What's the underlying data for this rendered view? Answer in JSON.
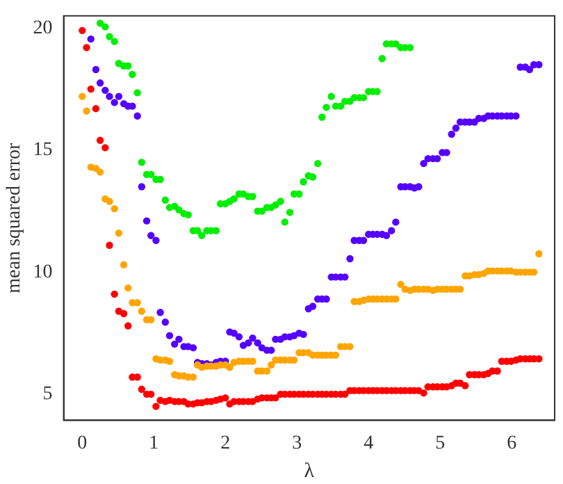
{
  "chart_data": {
    "type": "scatter",
    "xlabel": "λ",
    "ylabel": "mean squared error",
    "xlim": [
      -0.26,
      6.6
    ],
    "ylim": [
      3.93,
      20.5
    ],
    "xticks": [
      0,
      1,
      2,
      3,
      4,
      5,
      6
    ],
    "yticks": [
      5,
      10,
      15,
      20
    ],
    "grid": false,
    "legend": false,
    "marker": "circle",
    "x": [
      0,
      0.06,
      0.12,
      0.19,
      0.25,
      0.32,
      0.38,
      0.45,
      0.51,
      0.58,
      0.64,
      0.7,
      0.77,
      0.83,
      0.9,
      0.96,
      1.03,
      1.09,
      1.16,
      1.22,
      1.29,
      1.35,
      1.42,
      1.48,
      1.55,
      1.61,
      1.67,
      1.74,
      1.8,
      1.87,
      1.93,
      2.0,
      2.06,
      2.12,
      2.19,
      2.25,
      2.32,
      2.38,
      2.45,
      2.51,
      2.58,
      2.64,
      2.7,
      2.77,
      2.83,
      2.9,
      2.96,
      3.03,
      3.09,
      3.16,
      3.22,
      3.29,
      3.35,
      3.41,
      3.48,
      3.54,
      3.61,
      3.67,
      3.74,
      3.8,
      3.87,
      3.93,
      4.0,
      4.06,
      4.12,
      4.19,
      4.25,
      4.32,
      4.38,
      4.45,
      4.51,
      4.58,
      4.64,
      4.7,
      4.77,
      4.83,
      4.9,
      4.96,
      5.03,
      5.09,
      5.16,
      5.22,
      5.28,
      5.35,
      5.41,
      5.48,
      5.54,
      5.61,
      5.67,
      5.73,
      5.8,
      5.86,
      5.93,
      5.99,
      6.06,
      6.12,
      6.19,
      6.25,
      6.31,
      6.38
    ],
    "series": [
      {
        "color": "#ff0000",
        "values": [
          19.9,
          19.2,
          17.5,
          16.7,
          15.4,
          15.1,
          11.1,
          9.1,
          8.4,
          8.3,
          7.8,
          5.7,
          5.7,
          5.2,
          5.0,
          5.0,
          4.5,
          4.75,
          4.7,
          4.75,
          4.7,
          4.7,
          4.7,
          4.6,
          4.6,
          4.65,
          4.65,
          4.7,
          4.7,
          4.75,
          4.8,
          4.85,
          4.6,
          4.7,
          4.7,
          4.7,
          4.7,
          4.7,
          4.8,
          4.85,
          4.85,
          4.85,
          4.85,
          5.0,
          5.0,
          5.0,
          5.0,
          5.0,
          5.0,
          5.0,
          5.0,
          5.0,
          5.0,
          5.0,
          5.0,
          5.0,
          5.0,
          5.0,
          5.15,
          5.15,
          5.15,
          5.15,
          5.15,
          5.15,
          5.15,
          5.15,
          5.15,
          5.15,
          5.15,
          5.15,
          5.15,
          5.15,
          5.15,
          5.15,
          5.05,
          5.3,
          5.3,
          5.3,
          5.3,
          5.3,
          5.35,
          5.45,
          5.45,
          5.35,
          5.8,
          5.8,
          5.8,
          5.8,
          5.85,
          5.95,
          5.95,
          6.35,
          6.35,
          6.35,
          6.4,
          6.45,
          6.45,
          6.45,
          6.45,
          6.45
        ]
      },
      {
        "color": "#ffa500",
        "values": [
          17.2,
          16.6,
          14.3,
          14.25,
          14.1,
          13.0,
          12.9,
          12.6,
          11.6,
          10.3,
          9.35,
          8.75,
          8.75,
          8.4,
          8.05,
          8.05,
          6.45,
          6.4,
          6.4,
          6.35,
          5.8,
          5.75,
          5.75,
          5.7,
          5.7,
          6.2,
          6.1,
          6.15,
          6.15,
          6.15,
          6.2,
          6.2,
          6.1,
          6.3,
          6.35,
          6.35,
          6.35,
          6.35,
          5.95,
          5.95,
          5.95,
          6.2,
          6.4,
          6.4,
          6.4,
          6.4,
          6.4,
          6.7,
          6.7,
          6.7,
          6.6,
          6.6,
          6.6,
          6.6,
          6.6,
          6.6,
          6.95,
          6.95,
          6.95,
          8.8,
          8.8,
          8.85,
          8.9,
          8.9,
          8.9,
          8.9,
          8.9,
          8.9,
          8.9,
          9.5,
          9.3,
          9.25,
          9.3,
          9.3,
          9.3,
          9.3,
          9.25,
          9.3,
          9.3,
          9.3,
          9.3,
          9.3,
          9.3,
          9.85,
          9.85,
          9.9,
          9.9,
          9.95,
          10.05,
          10.05,
          10.05,
          10.05,
          10.05,
          10.05,
          10.0,
          10.0,
          10.0,
          10.0,
          10.0,
          10.75
        ]
      },
      {
        "color": "#5500ff",
        "values": [
          null,
          null,
          19.55,
          18.3,
          17.75,
          17.45,
          17.2,
          16.95,
          17.2,
          16.9,
          16.8,
          16.8,
          16.4,
          13.5,
          12.1,
          11.5,
          11.3,
          8.35,
          7.95,
          7.4,
          7.05,
          7.25,
          6.95,
          6.95,
          6.9,
          6.3,
          6.25,
          6.25,
          6.2,
          6.3,
          6.35,
          6.35,
          7.55,
          7.5,
          7.35,
          7.0,
          7.1,
          7.3,
          7.1,
          6.9,
          6.8,
          6.8,
          7.25,
          7.25,
          7.35,
          7.35,
          7.4,
          7.5,
          7.45,
          8.5,
          8.6,
          8.9,
          8.9,
          8.9,
          9.8,
          9.8,
          9.8,
          9.8,
          10.55,
          11.3,
          11.3,
          11.3,
          11.55,
          11.55,
          11.55,
          11.55,
          11.5,
          11.7,
          12.05,
          13.5,
          13.5,
          13.5,
          13.45,
          13.5,
          14.45,
          14.65,
          14.65,
          14.65,
          14.9,
          14.9,
          15.65,
          15.9,
          16.15,
          16.15,
          16.15,
          16.15,
          16.3,
          16.3,
          16.4,
          16.4,
          16.4,
          16.4,
          16.4,
          16.4,
          16.4,
          18.4,
          18.4,
          18.3,
          18.5,
          18.5
        ]
      },
      {
        "color": "#00ee00",
        "values": [
          null,
          null,
          null,
          null,
          20.2,
          20.05,
          19.65,
          19.45,
          18.55,
          18.45,
          18.45,
          18.1,
          17.35,
          14.5,
          14.0,
          14.0,
          13.8,
          13.8,
          12.95,
          12.65,
          12.7,
          12.55,
          12.4,
          12.35,
          11.7,
          11.7,
          11.5,
          11.7,
          11.7,
          11.7,
          12.8,
          12.8,
          12.9,
          13.0,
          13.2,
          13.2,
          13.1,
          13.1,
          12.5,
          12.5,
          12.65,
          12.65,
          12.75,
          12.9,
          12.05,
          12.45,
          13.2,
          13.2,
          13.7,
          13.95,
          13.9,
          14.45,
          16.35,
          16.75,
          17.2,
          16.8,
          16.8,
          17.0,
          17.0,
          17.15,
          17.15,
          17.15,
          17.4,
          17.4,
          17.4,
          18.75,
          19.35,
          19.35,
          19.35,
          19.2,
          19.2,
          19.2,
          null,
          null,
          null,
          null,
          null,
          null,
          null,
          null,
          null,
          null,
          null,
          null,
          null,
          null,
          null,
          null,
          null,
          null,
          null,
          null,
          null,
          null,
          null,
          null,
          null,
          null,
          null,
          null
        ]
      }
    ]
  }
}
